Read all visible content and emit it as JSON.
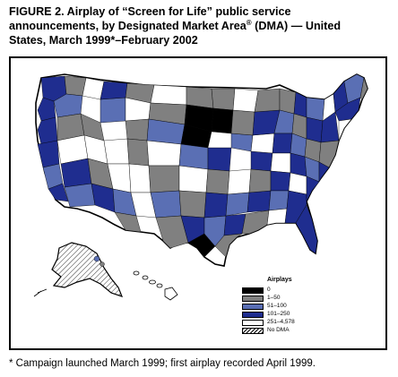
{
  "figure": {
    "title_line1": "FIGURE 2. Airplay of “Screen for Life” public service",
    "title_line2a": "announcements, by Designated Market Area",
    "title_reg": "®",
    "title_line2b": " (DMA) — United",
    "title_line3": "States, March 1999*–February 2002"
  },
  "legend": {
    "title": "Airplays",
    "items": [
      {
        "label": "0",
        "color": "#000000"
      },
      {
        "label": "1–50",
        "color": "#808080"
      },
      {
        "label": "51–100",
        "color": "#5a6fb4"
      },
      {
        "label": "101–250",
        "color": "#1f2d8f"
      },
      {
        "label": "251–4,578",
        "color": "#ffffff"
      },
      {
        "label": "No DMA",
        "color": "hatch"
      }
    ]
  },
  "footnote": "* Campaign launched March 1999; first airplay recorded April 1999."
}
